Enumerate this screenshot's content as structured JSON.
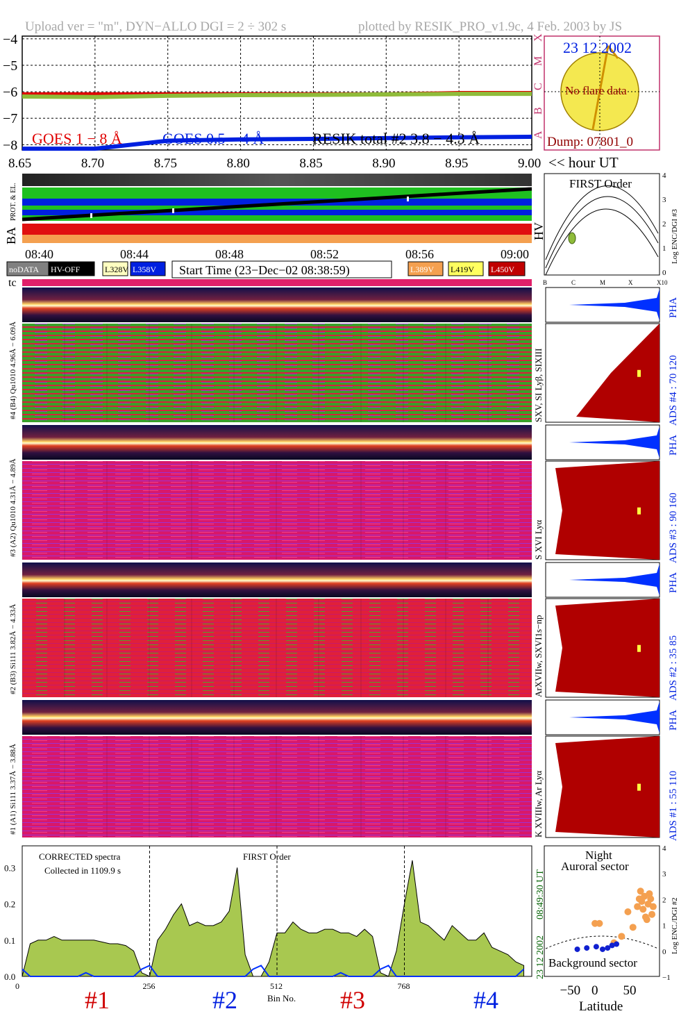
{
  "header": {
    "left": "Upload ver = \"m\", DYN−ALLO DGI =   2 ÷ 302 s",
    "right": "plotted by RESIK_PRO_v1.9c, 4 Feb. 2003 by JS"
  },
  "colors": {
    "goes_long": "#e00000",
    "goes_short": "#0020e0",
    "resik_total": "#000000",
    "resik_green": "#8fbc3a",
    "sun": "#f4e850",
    "frame_pink": "#c0306a",
    "hist_red": "#b00000",
    "hist_blue": "#0030ff",
    "corrected_fill": "#a8c850",
    "orange": "#f4a050"
  },
  "goes": {
    "yticks": [
      "−4",
      "−5",
      "−6",
      "−7",
      "−8"
    ],
    "xticks": [
      "8.65",
      "8.70",
      "8.75",
      "8.80",
      "8.85",
      "8.90",
      "8.95",
      "9.00"
    ],
    "x_suffix": "<< hour UT",
    "legend_long": "GOES 1 − 8 Å",
    "legend_short": "GOES 0.5 − 4 Å",
    "legend_total": "RESIK total #2  3.8 − 4.3 Å",
    "class_letters": [
      "X",
      "M",
      "C",
      "B",
      "A"
    ]
  },
  "chart_data": [
    {
      "type": "line",
      "x": [
        8.65,
        8.7,
        8.75,
        8.8,
        8.85,
        8.9,
        8.95,
        9.0
      ],
      "series": [
        {
          "name": "GOES 1 − 8 Å",
          "values": [
            -6.1,
            -6.1,
            -6.1,
            -6.1,
            -6.1,
            -6.1,
            -6.05,
            -6.05
          ]
        },
        {
          "name": "GOES 0.5 − 4 Å",
          "values": [
            -8.15,
            -8.15,
            -7.85,
            -7.8,
            -7.78,
            -7.75,
            -7.72,
            -7.7
          ]
        },
        {
          "name": "RESIK total #2  3.8 − 4.3 Å",
          "values": [
            -6.18,
            -6.2,
            -6.15,
            -6.13,
            -6.12,
            -6.1,
            -6.08,
            -6.08
          ]
        }
      ],
      "ylim": [
        -8.2,
        -3.9
      ],
      "xlim": [
        8.65,
        9.0
      ]
    },
    {
      "type": "line",
      "x": [
        0,
        16,
        32,
        48,
        64,
        80,
        96,
        112,
        128,
        144,
        160,
        176,
        192,
        208,
        224,
        240,
        256,
        272,
        288,
        304,
        320,
        336,
        352,
        368,
        384,
        400,
        416,
        432,
        448,
        464,
        480,
        496,
        512,
        528,
        544,
        560,
        576,
        592,
        608,
        624,
        640,
        656,
        672,
        688,
        704,
        720,
        736,
        752,
        768,
        784,
        800,
        816,
        832,
        848,
        864,
        880,
        896,
        912,
        928,
        944,
        960,
        976,
        992,
        1008
      ],
      "series": [
        {
          "name": "CORRECTED spectra",
          "values": [
            0.0,
            0.09,
            0.1,
            0.1,
            0.11,
            0.1,
            0.1,
            0.1,
            0.1,
            0.1,
            0.095,
            0.09,
            0.09,
            0.085,
            0.07,
            0.01,
            0.0,
            0.1,
            0.13,
            0.17,
            0.2,
            0.14,
            0.15,
            0.14,
            0.14,
            0.15,
            0.18,
            0.3,
            0.06,
            0.0,
            0.0,
            0.04,
            0.12,
            0.12,
            0.15,
            0.13,
            0.12,
            0.12,
            0.13,
            0.13,
            0.12,
            0.12,
            0.11,
            0.13,
            0.11,
            0.01,
            0.0,
            0.07,
            0.2,
            0.32,
            0.15,
            0.14,
            0.12,
            0.1,
            0.14,
            0.12,
            0.1,
            0.1,
            0.12,
            0.08,
            0.07,
            0.06,
            0.04,
            0.03
          ]
        },
        {
          "name": "Background",
          "values": [
            0.02,
            0.0,
            0.0,
            0.0,
            0.0,
            0.0,
            0.0,
            0.0,
            0.01,
            0.0,
            0.0,
            0.0,
            0.0,
            0.0,
            0.0,
            0.02,
            0.03,
            0.0,
            0.0,
            0.0,
            0.0,
            0.0,
            0.0,
            0.0,
            0.0,
            0.0,
            0.0,
            0.0,
            0.0,
            0.02,
            0.03,
            0.0,
            0.0,
            0.0,
            0.0,
            0.0,
            0.0,
            0.0,
            0.0,
            0.0,
            0.01,
            0.0,
            0.0,
            0.0,
            0.0,
            0.02,
            0.03,
            0.0,
            0.0,
            0.0,
            0.0,
            0.0,
            0.0,
            0.0,
            0.0,
            0.0,
            0.0,
            0.0,
            0.0,
            0.0,
            0.0,
            0.0,
            0.0,
            0.02
          ]
        }
      ],
      "ylim": [
        0,
        0.36
      ],
      "xlim": [
        0,
        1024
      ],
      "xticks": [
        "0",
        "256",
        "512",
        "768"
      ],
      "yticks": [
        "0.0",
        "0.1",
        "0.2",
        "0.3"
      ],
      "xlabel": "Bin No."
    },
    {
      "type": "scatter",
      "series": [
        {
          "name": "Auroral sector",
          "points": [
            [
              -12,
              1.05
            ],
            [
              -5,
              1.05
            ],
            [
              18,
              0.3
            ],
            [
              30,
              0.55
            ],
            [
              40,
              1.5
            ],
            [
              48,
              0.9
            ],
            [
              55,
              1.7
            ],
            [
              58,
              2.0
            ],
            [
              60,
              2.3
            ],
            [
              62,
              1.9
            ],
            [
              64,
              1.6
            ],
            [
              66,
              2.1
            ],
            [
              68,
              1.3
            ],
            [
              70,
              1.2
            ],
            [
              72,
              1.8
            ],
            [
              74,
              2.2
            ],
            [
              76,
              2.0
            ],
            [
              78,
              1.4
            ],
            [
              80,
              1.7
            ]
          ]
        },
        {
          "name": "Background sector",
          "points": [
            [
              -40,
              0.05
            ],
            [
              -25,
              0.1
            ],
            [
              -10,
              0.15
            ],
            [
              0,
              0.05
            ],
            [
              8,
              0.1
            ],
            [
              15,
              0.2
            ],
            [
              22,
              0.25
            ]
          ]
        }
      ],
      "xlim": [
        -90,
        90
      ],
      "ylim": [
        -1,
        4
      ],
      "xlabel": "Latitude",
      "ylabel": "Log ENC./DGI #2",
      "xticks": [
        "−50",
        "0",
        "50"
      ],
      "yticks": [
        "4",
        "3",
        "2",
        "1",
        "0",
        "−1"
      ]
    }
  ],
  "sun": {
    "date": "23 12 2002",
    "note": "No flare data",
    "dump": "Dump: 07801_0"
  },
  "first_order": {
    "title": "FIRST Order",
    "ylabel": "Log ENC/DGI #3",
    "yticks": [
      "4",
      "3",
      "2",
      "1",
      "0"
    ],
    "xticks": [
      "B",
      "C",
      "M",
      "X",
      "X10"
    ]
  },
  "ba_hv": {
    "ba": "BA",
    "hv": "HV",
    "prot": "PROT. & EL.",
    "time_ticks": [
      "08:40",
      "08:44",
      "08:48",
      "08:52",
      "08:56",
      "09:00"
    ]
  },
  "legend_boxes": [
    {
      "label": "noDATA",
      "bg": "#808080",
      "fg": "#ffffff"
    },
    {
      "label": "HV-OFF",
      "bg": "#000000",
      "fg": "#ffffff"
    },
    {
      "label": "L328V",
      "bg": "#ffffc0",
      "fg": "#000000"
    },
    {
      "label": "L358V",
      "bg": "#0020e0",
      "fg": "#ffffff"
    },
    {
      "label": "L389V",
      "bg": "#f4a050",
      "fg": "#ffffff"
    },
    {
      "label": "L419V",
      "bg": "#ffff60",
      "fg": "#000000"
    },
    {
      "label": "L450V",
      "bg": "#c00000",
      "fg": "#ffffff"
    }
  ],
  "start_time": "Start Time (23−Dec−02 08:38:59)",
  "tc": "tc",
  "channels": [
    {
      "strip_label": "#4 (B4) Qu1010 4.96Å − 6.09Å",
      "pha": "PHA",
      "ads": "ADS #4 :   70 120",
      "lines": "SXV, SI Lyβ, SIXIII"
    },
    {
      "strip_label": "#3 (A2) Qu1010  4.31Å − 4.89Å",
      "pha": "PHA",
      "ads": "ADS #3 :   90 160",
      "lines": "S XVI Lyα"
    },
    {
      "strip_label": "#2 (B3) Si111  3.82Å − 4.33Å",
      "pha": "PHA",
      "ads": "ADS #2 :   35  85",
      "lines": "ArXVIIw, SXVI1s−np"
    },
    {
      "strip_label": "#1 (A1) Si111  3.37Å − 3.88Å",
      "pha": "PHA",
      "ads": "ADS #1 :   55 110",
      "lines": "K XVIIIw, Ar Lyα"
    }
  ],
  "spectra": {
    "corrected": "CORRECTED spectra",
    "collected": "Collected in   1109.9 s",
    "first_order": "FIRST Order",
    "time_stamp": "08:49:30 UT",
    "date_stamp": "23 12 2002",
    "bins": [
      "#1",
      "#2",
      "#3",
      "#4"
    ]
  },
  "night": {
    "title": "Night",
    "auroral": "Auroral sector",
    "background": "Background sector"
  }
}
